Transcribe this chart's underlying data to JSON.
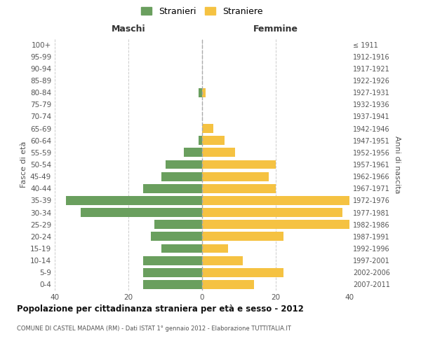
{
  "age_groups": [
    "0-4",
    "5-9",
    "10-14",
    "15-19",
    "20-24",
    "25-29",
    "30-34",
    "35-39",
    "40-44",
    "45-49",
    "50-54",
    "55-59",
    "60-64",
    "65-69",
    "70-74",
    "75-79",
    "80-84",
    "85-89",
    "90-94",
    "95-99",
    "100+"
  ],
  "birth_years": [
    "2007-2011",
    "2002-2006",
    "1997-2001",
    "1992-1996",
    "1987-1991",
    "1982-1986",
    "1977-1981",
    "1972-1976",
    "1967-1971",
    "1962-1966",
    "1957-1961",
    "1952-1956",
    "1947-1951",
    "1942-1946",
    "1937-1941",
    "1932-1936",
    "1927-1931",
    "1922-1926",
    "1917-1921",
    "1912-1916",
    "≤ 1911"
  ],
  "maschi": [
    16,
    16,
    16,
    11,
    14,
    13,
    33,
    37,
    16,
    11,
    10,
    5,
    1,
    0,
    0,
    0,
    1,
    0,
    0,
    0,
    0
  ],
  "femmine": [
    14,
    22,
    11,
    7,
    22,
    40,
    38,
    40,
    20,
    18,
    20,
    9,
    6,
    3,
    0,
    0,
    1,
    0,
    0,
    0,
    0
  ],
  "color_maschi": "#6a9f5e",
  "color_femmine": "#f5c242",
  "title": "Popolazione per cittadinanza straniera per età e sesso - 2012",
  "subtitle": "COMUNE DI CASTEL MADAMA (RM) - Dati ISTAT 1° gennaio 2012 - Elaborazione TUTTITALIA.IT",
  "xlabel_left": "Maschi",
  "xlabel_right": "Femmine",
  "ylabel_left": "Fasce di età",
  "ylabel_right": "Anni di nascita",
  "legend_maschi": "Stranieri",
  "legend_femmine": "Straniere",
  "xlim": 40,
  "background_color": "#ffffff",
  "grid_color": "#cccccc"
}
